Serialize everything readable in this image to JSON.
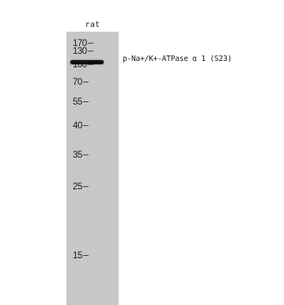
{
  "lane_label": "rat",
  "band_label": "p-Na+/K+-ATPase α 1 (S23)",
  "markers": [
    "170",
    "130",
    "100",
    "70",
    "55",
    "40",
    "35",
    "25",
    "15"
  ],
  "colors": {
    "lane": "#c7c7c7",
    "band": "#0d0d0d",
    "background": "#ffffff"
  }
}
